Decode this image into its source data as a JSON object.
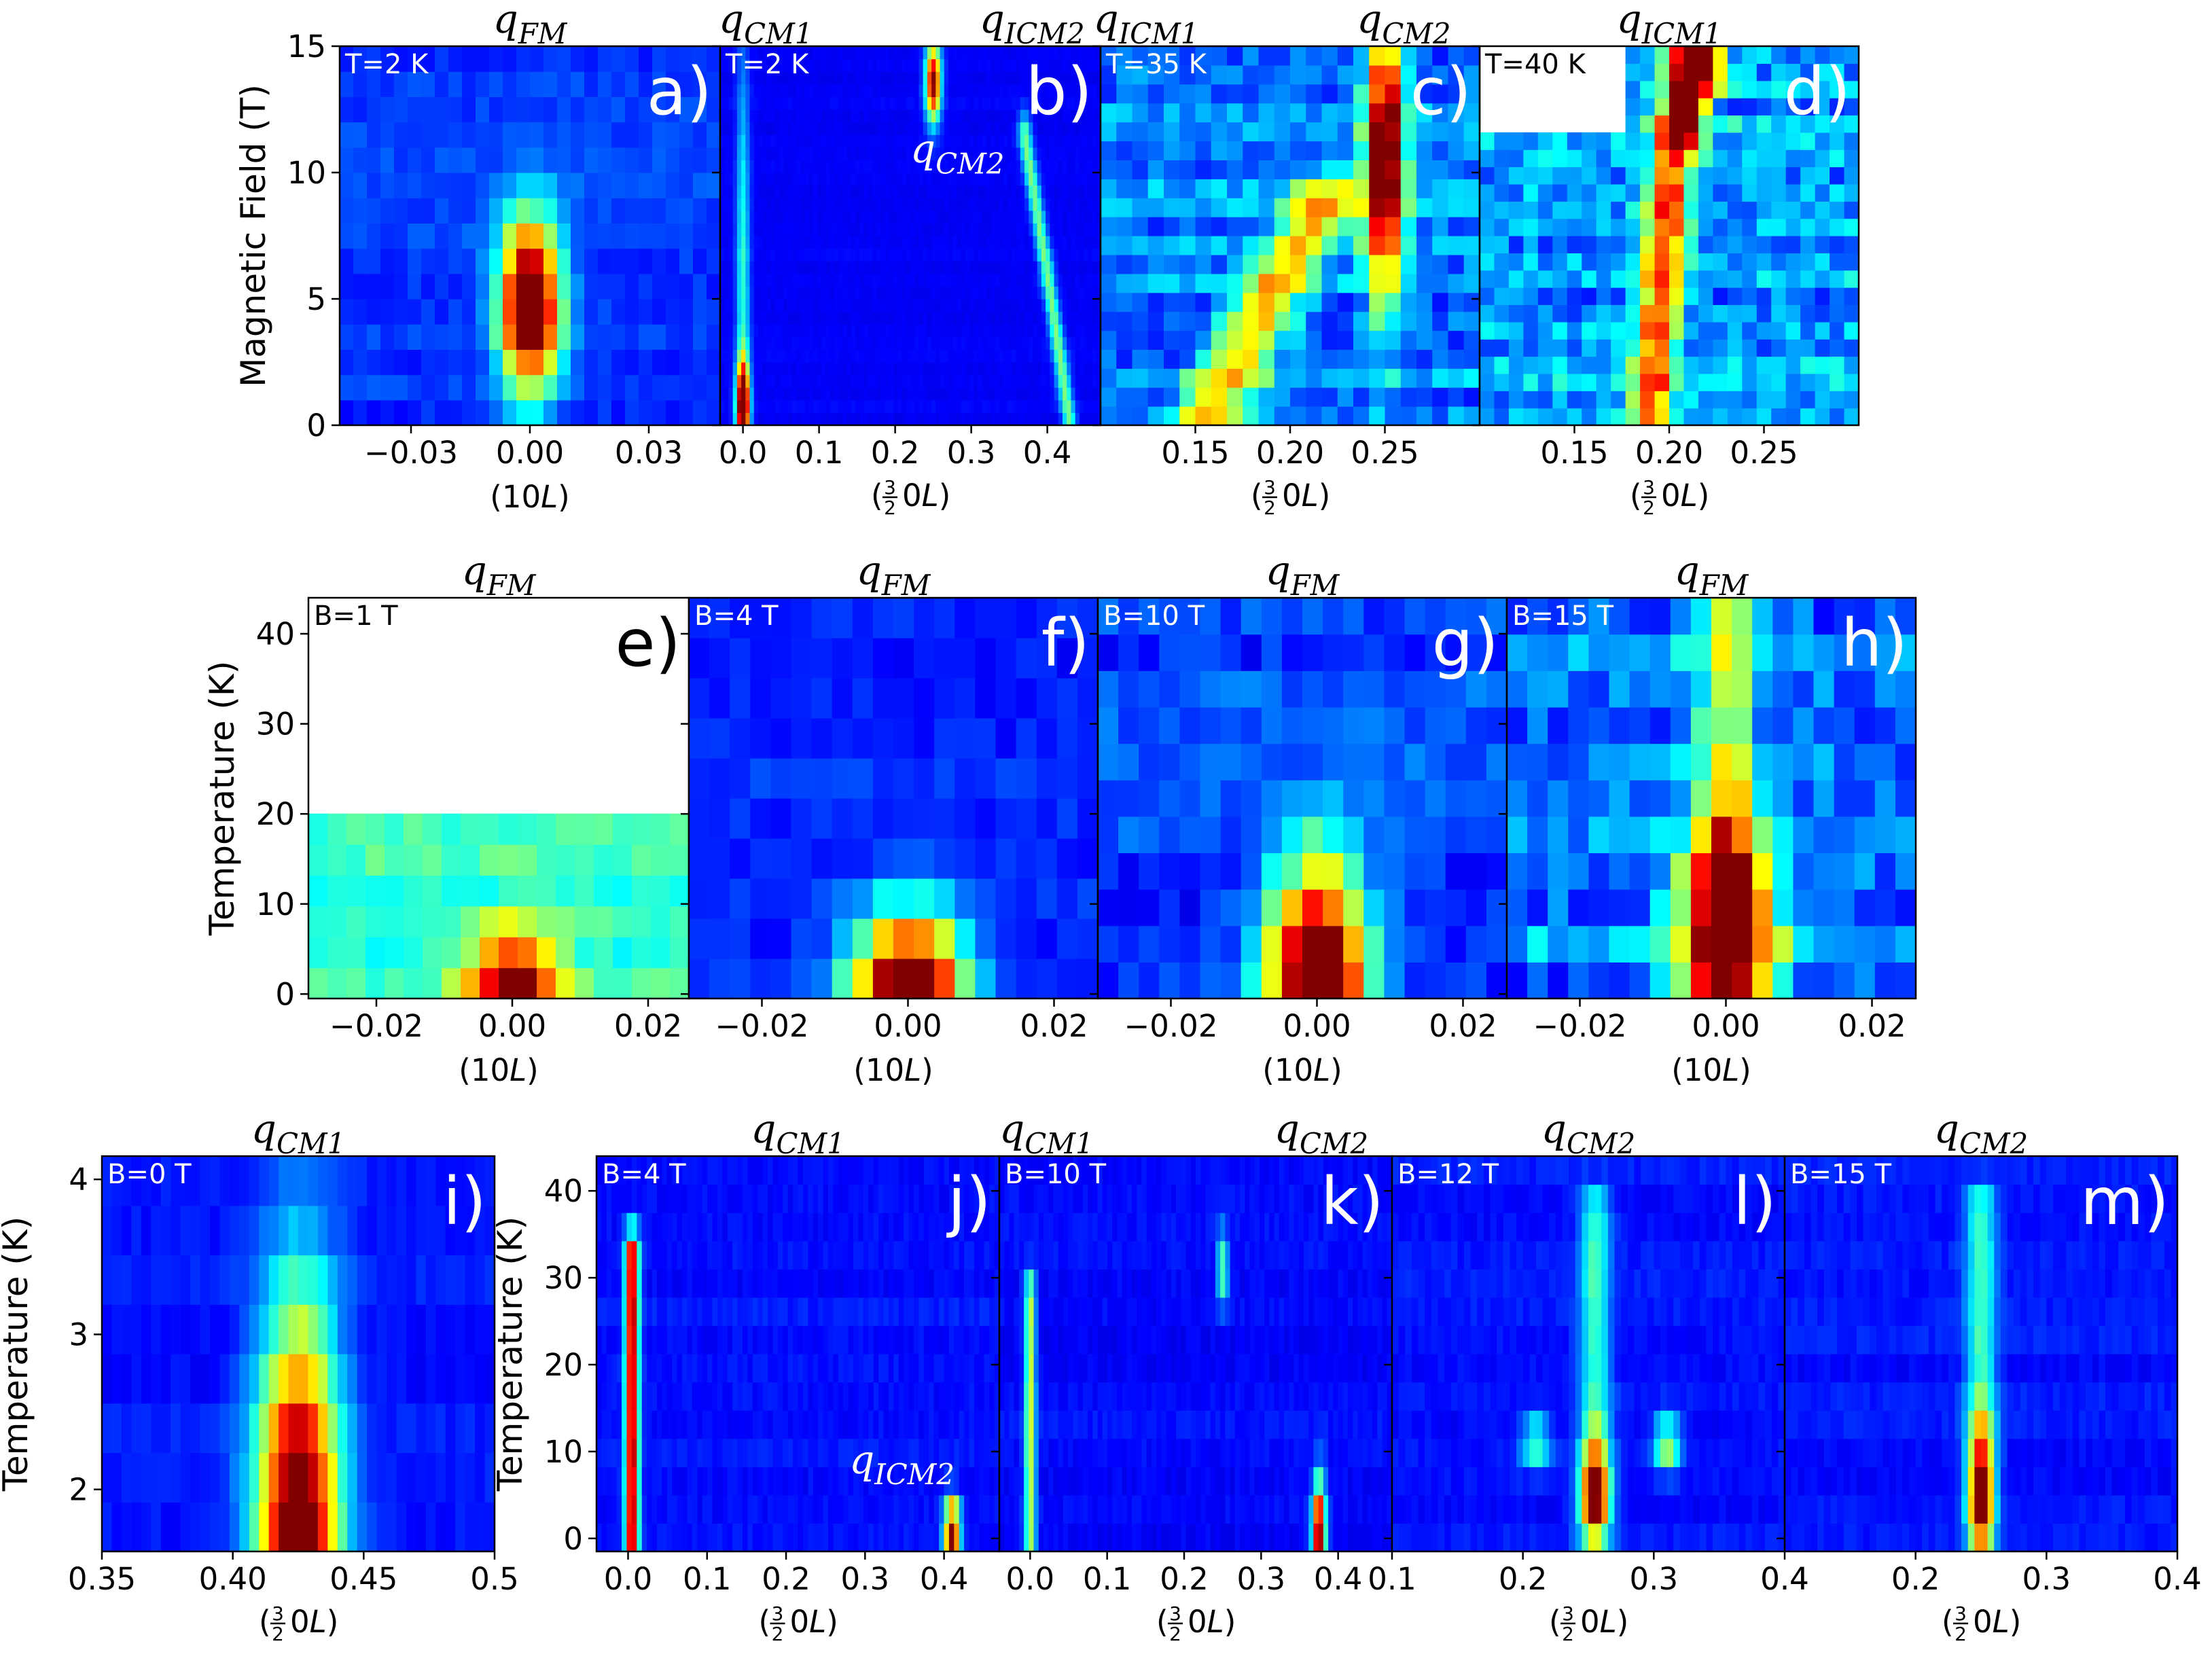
{
  "figure": {
    "description": ""
  },
  "chart_data": [
    {
      "id": "a",
      "type": "heatmap",
      "panel_label": "a)",
      "title": "q_FM",
      "title_parts": {
        "base": "q",
        "sub": "FM"
      },
      "corner_text": "T=2 K",
      "xlabel": "(10L)",
      "xlabel_kind": "10L",
      "ylabel": "Magnetic Field (T)",
      "xlim": [
        -0.048,
        0.048
      ],
      "ylim": [
        0,
        15
      ],
      "xticks": [
        -0.03,
        0.0,
        0.03
      ],
      "xtick_labels": [
        "−0.03",
        "0.00",
        "0.03"
      ],
      "yticks": [
        0,
        5,
        10,
        15
      ],
      "ytick_labels": [
        "0",
        "5",
        "10",
        "15"
      ],
      "nx": 28,
      "ny": 15,
      "blank": [],
      "features": [
        {
          "x": 0.0,
          "y": 4.8,
          "sx": 0.0055,
          "sy": 2.4,
          "amp": 1.0
        }
      ],
      "bg": 0.18,
      "noise": 0.03,
      "annotations": []
    },
    {
      "id": "b",
      "type": "heatmap",
      "panel_label": "b)",
      "title": "q_CM1   q_ICM2",
      "title_parts": {
        "base": "q",
        "sub": "CM1"
      },
      "title2_parts": {
        "base": "q",
        "sub": "ICM2"
      },
      "corner_text": "T=2 K",
      "xlabel": "(3/2 0L)",
      "xlabel_kind": "frac",
      "xlim": [
        -0.03,
        0.47
      ],
      "ylim": [
        0,
        15
      ],
      "xticks": [
        0.0,
        0.1,
        0.2,
        0.3,
        0.4
      ],
      "xtick_labels": [
        "0.0",
        "0.1",
        "0.2",
        "0.3",
        "0.4"
      ],
      "yticks": [
        0,
        5,
        10,
        15
      ],
      "ytick_labels": [],
      "nx": 90,
      "ny": 30,
      "blank": [],
      "features": [
        {
          "x": 0.0,
          "y": 0.8,
          "sx": 0.006,
          "sy": 1.2,
          "amp": 1.0
        },
        {
          "x": 0.0,
          "y": 6,
          "sx": 0.006,
          "sy": 6,
          "amp": 0.3
        },
        {
          "x": 0.25,
          "y": 13.6,
          "sx": 0.007,
          "sy": 1.1,
          "amp": 0.9
        }
      ],
      "lines": [
        {
          "pts": [
            [
              0.37,
              11.5
            ],
            [
              0.4,
              6
            ],
            [
              0.42,
              2
            ],
            [
              0.43,
              0
            ]
          ],
          "amp": 0.38,
          "w": 0.006
        }
      ],
      "bg": 0.12,
      "noise": 0.01,
      "annotations": [
        {
          "text_parts": {
            "base": "q",
            "sub": "CM2"
          },
          "x": 0.22,
          "y": 10.4
        }
      ]
    },
    {
      "id": "c",
      "type": "heatmap",
      "panel_label": "c)",
      "title": "q_ICM1  q_CM2",
      "title_parts": {
        "base": "q",
        "sub": "ICM1"
      },
      "title2_parts": {
        "base": "q",
        "sub": "CM2"
      },
      "corner_text": "T=35 K",
      "xlabel": "(3/2 0L)",
      "xlabel_kind": "frac",
      "xlim": [
        0.1,
        0.3
      ],
      "ylim": [
        0,
        15
      ],
      "xticks": [
        0.15,
        0.2,
        0.25
      ],
      "xtick_labels": [
        "0.15",
        "0.20",
        "0.25"
      ],
      "yticks": [
        0,
        5,
        10,
        15
      ],
      "ytick_labels": [],
      "nx": 24,
      "ny": 20,
      "blank": [],
      "features": [
        {
          "x": 0.25,
          "y": 10.5,
          "sx": 0.007,
          "sy": 3.8,
          "amp": 0.95
        }
      ],
      "lines": [
        {
          "pts": [
            [
              0.155,
              0
            ],
            [
              0.175,
              3
            ],
            [
              0.195,
              6
            ],
            [
              0.22,
              9
            ]
          ],
          "amp": 0.45,
          "w": 0.013
        }
      ],
      "bg": 0.25,
      "noise": 0.07,
      "annotations": []
    },
    {
      "id": "d",
      "type": "heatmap",
      "panel_label": "d)",
      "title": "q_ICM1",
      "title_parts": {
        "base": "q",
        "sub": "ICM1"
      },
      "corner_text": "T=40 K",
      "xlabel": "(3/2 0L)",
      "xlabel_kind": "frac",
      "xlim": [
        0.1,
        0.3
      ],
      "ylim": [
        0,
        15
      ],
      "xticks": [
        0.15,
        0.2,
        0.25
      ],
      "xtick_labels": [
        "0.15",
        "0.20",
        "0.25"
      ],
      "yticks": [
        0,
        5,
        10,
        15
      ],
      "ytick_labels": [],
      "nx": 26,
      "ny": 22,
      "blank": [
        [
          0.1,
          0.18,
          11.3,
          15
        ]
      ],
      "features": [
        {
          "x": 0.215,
          "y": 14.4,
          "sx": 0.008,
          "sy": 1.0,
          "amp": 0.8
        },
        {
          "x": 0.205,
          "y": 11.8,
          "sx": 0.006,
          "sy": 0.7,
          "amp": 0.6
        }
      ],
      "lines": [
        {
          "pts": [
            [
              0.19,
              0
            ],
            [
              0.195,
              5
            ],
            [
              0.2,
              10
            ],
            [
              0.21,
              14
            ]
          ],
          "amp": 0.55,
          "w": 0.008
        }
      ],
      "bg": 0.3,
      "noise": 0.09,
      "annotations": []
    },
    {
      "id": "e",
      "type": "heatmap",
      "panel_label": "e)",
      "title": "q_FM",
      "title_parts": {
        "base": "q",
        "sub": "FM"
      },
      "corner_text": "B=1 T",
      "xlabel": "(10L)",
      "xlabel_kind": "10L",
      "ylabel": "Temperature (K)",
      "xlim": [
        -0.03,
        0.026
      ],
      "ylim": [
        -0.5,
        44
      ],
      "xticks": [
        -0.02,
        0.0,
        0.02
      ],
      "xtick_labels": [
        "−0.02",
        "0.00",
        "0.02"
      ],
      "yticks": [
        0,
        10,
        20,
        30,
        40
      ],
      "ytick_labels": [
        "0",
        "10",
        "20",
        "30",
        "40"
      ],
      "nx": 20,
      "ny": 13,
      "blank": [
        [
          -0.03,
          0.026,
          21,
          44
        ]
      ],
      "features": [
        {
          "x": 0.0,
          "y": 0.3,
          "sx": 0.0045,
          "sy": 4.5,
          "amp": 0.65
        }
      ],
      "bg": 0.42,
      "noise": 0.04,
      "annotations": []
    },
    {
      "id": "f",
      "type": "heatmap",
      "panel_label": "f)",
      "title": "q_FM",
      "title_parts": {
        "base": "q",
        "sub": "FM"
      },
      "corner_text": "B=4 T",
      "xlabel": "(10L)",
      "xlabel_kind": "10L",
      "xlim": [
        -0.03,
        0.026
      ],
      "ylim": [
        -0.5,
        44
      ],
      "xticks": [
        -0.02,
        0.0,
        0.02
      ],
      "xtick_labels": [
        "−0.02",
        "0.00",
        "0.02"
      ],
      "yticks": [
        0,
        10,
        20,
        30,
        40
      ],
      "ytick_labels": [],
      "nx": 20,
      "ny": 10,
      "blank": [],
      "features": [
        {
          "x": 0.0,
          "y": 0.5,
          "sx": 0.0055,
          "sy": 6,
          "amp": 0.95
        }
      ],
      "bg": 0.16,
      "noise": 0.03,
      "annotations": []
    },
    {
      "id": "g",
      "type": "heatmap",
      "panel_label": "g)",
      "title": "q_FM",
      "title_parts": {
        "base": "q",
        "sub": "FM"
      },
      "corner_text": "B=10 T",
      "xlabel": "(10L)",
      "xlabel_kind": "10L",
      "xlim": [
        -0.03,
        0.026
      ],
      "ylim": [
        -0.5,
        44
      ],
      "xticks": [
        -0.02,
        0.0,
        0.02
      ],
      "xtick_labels": [
        "−0.02",
        "0.00",
        "0.02"
      ],
      "yticks": [
        0,
        10,
        20,
        30,
        40
      ],
      "ytick_labels": [],
      "nx": 20,
      "ny": 11,
      "blank": [],
      "features": [
        {
          "x": 0.0,
          "y": 2,
          "sx": 0.005,
          "sy": 9,
          "amp": 1.0
        }
      ],
      "bg": 0.18,
      "noise": 0.05,
      "annotations": []
    },
    {
      "id": "h",
      "type": "heatmap",
      "panel_label": "h)",
      "title": "q_FM",
      "title_parts": {
        "base": "q",
        "sub": "FM"
      },
      "corner_text": "B=15 T",
      "xlabel": "(10L)",
      "xlabel_kind": "10L",
      "xlim": [
        -0.03,
        0.026
      ],
      "ylim": [
        -0.5,
        44
      ],
      "xticks": [
        -0.02,
        0.0,
        0.02
      ],
      "xtick_labels": [
        "−0.02",
        "0.00",
        "0.02"
      ],
      "yticks": [
        0,
        10,
        20,
        30,
        40
      ],
      "ytick_labels": [],
      "nx": 20,
      "ny": 11,
      "blank": [],
      "features": [
        {
          "x": 0.0,
          "y": 6,
          "sx": 0.0045,
          "sy": 8,
          "amp": 0.95
        }
      ],
      "lines": [
        {
          "pts": [
            [
              0.0,
              14
            ],
            [
              0.0,
              44
            ]
          ],
          "amp": 0.35,
          "w": 0.003
        }
      ],
      "bg": 0.25,
      "noise": 0.08,
      "annotations": []
    },
    {
      "id": "i",
      "type": "heatmap",
      "panel_label": "i)",
      "title": "q_CM1",
      "title_parts": {
        "base": "q",
        "sub": "CM1"
      },
      "corner_text": "B=0 T",
      "xlabel": "(3/2 0L)",
      "xlabel_kind": "frac",
      "ylabel": "Temperature (K)",
      "xlim": [
        0.35,
        0.5
      ],
      "ylim": [
        1.6,
        4.15
      ],
      "xticks": [
        0.35,
        0.4,
        0.45,
        0.5
      ],
      "xtick_labels": [
        "0.35",
        "0.40",
        "0.45",
        "0.5"
      ],
      "yticks": [
        2,
        3,
        4
      ],
      "ytick_labels": [
        "2",
        "3",
        "4"
      ],
      "nx": 40,
      "ny": 8,
      "blank": [],
      "features": [
        {
          "x": 0.425,
          "y": 1.6,
          "sx": 0.011,
          "sy": 1.1,
          "amp": 1.0
        }
      ],
      "bg": 0.14,
      "noise": 0.02,
      "annotations": []
    },
    {
      "id": "j",
      "type": "heatmap",
      "panel_label": "j)",
      "title": "q_CM1",
      "title_parts": {
        "base": "q",
        "sub": "CM1"
      },
      "corner_text": "B=4 T",
      "xlabel": "(3/2 0L)",
      "xlabel_kind": "frac",
      "ylabel": "Temperature (K)",
      "xlim": [
        -0.04,
        0.47
      ],
      "ylim": [
        -1.5,
        44
      ],
      "xticks": [
        0.0,
        0.1,
        0.2,
        0.3,
        0.4
      ],
      "xtick_labels": [
        "0.0",
        "0.1",
        "0.2",
        "0.3",
        "0.4"
      ],
      "yticks": [
        0,
        10,
        20,
        30,
        40
      ],
      "ytick_labels": [
        "0",
        "10",
        "20",
        "30",
        "40"
      ],
      "nx": 80,
      "ny": 14,
      "blank": [],
      "features": [
        {
          "x": 0.41,
          "y": 1,
          "sx": 0.007,
          "sy": 2.5,
          "amp": 0.9
        }
      ],
      "lines": [
        {
          "pts": [
            [
              0.005,
              0
            ],
            [
              0.005,
              33
            ]
          ],
          "amp": 0.85,
          "w": 0.006
        }
      ],
      "bg": 0.14,
      "noise": 0.02,
      "annotations": [
        {
          "text_parts": {
            "base": "q",
            "sub": "ICM2"
          },
          "x": 0.28,
          "y": 7.5
        }
      ]
    },
    {
      "id": "k",
      "type": "heatmap",
      "panel_label": "k)",
      "title": "q_CM1   q_CM2",
      "title_parts": {
        "base": "q",
        "sub": "CM1"
      },
      "title2_parts": {
        "base": "q",
        "sub": "CM2"
      },
      "corner_text": "B=10 T",
      "xlabel": "(3/2 0L)",
      "xlabel_kind": "frac",
      "xlim": [
        -0.04,
        0.47
      ],
      "ylim": [
        -1.5,
        44
      ],
      "xticks": [
        0.0,
        0.1,
        0.2,
        0.3,
        0.4
      ],
      "xtick_labels": [
        "0.0",
        "0.1",
        "0.2",
        "0.3",
        "0.4"
      ],
      "yticks": [
        0,
        10,
        20,
        30,
        40
      ],
      "ytick_labels": [],
      "nx": 80,
      "ny": 14,
      "blank": [],
      "features": [
        {
          "x": 0.375,
          "y": 1,
          "sx": 0.006,
          "sy": 4,
          "amp": 0.95
        },
        {
          "x": 0.25,
          "y": 31,
          "sx": 0.005,
          "sy": 3,
          "amp": 0.35
        }
      ],
      "lines": [
        {
          "pts": [
            [
              0.0,
              0
            ],
            [
              0.0,
              28
            ]
          ],
          "amp": 0.45,
          "w": 0.005
        }
      ],
      "bg": 0.13,
      "noise": 0.02,
      "annotations": []
    },
    {
      "id": "l",
      "type": "heatmap",
      "panel_label": "l)",
      "title": "q_CM2",
      "title_parts": {
        "base": "q",
        "sub": "CM2"
      },
      "corner_text": "B=12 T",
      "xlabel": "(3/2 0L)",
      "xlabel_kind": "frac",
      "xlim": [
        0.1,
        0.4
      ],
      "ylim": [
        -1.5,
        44
      ],
      "xticks": [
        0.1,
        0.2,
        0.3,
        0.4
      ],
      "xtick_labels": [
        "0.1",
        "0.2",
        "0.3",
        "0.4"
      ],
      "yticks": [
        0,
        10,
        20,
        30,
        40
      ],
      "ytick_labels": [],
      "nx": 60,
      "ny": 14,
      "blank": [],
      "features": [
        {
          "x": 0.255,
          "y": 5,
          "sx": 0.008,
          "sy": 4,
          "amp": 1.0
        },
        {
          "x": 0.31,
          "y": 11,
          "sx": 0.007,
          "sy": 2,
          "amp": 0.45
        },
        {
          "x": 0.21,
          "y": 11,
          "sx": 0.008,
          "sy": 2,
          "amp": 0.35
        }
      ],
      "lines": [
        {
          "pts": [
            [
              0.255,
              12
            ],
            [
              0.255,
              38
            ]
          ],
          "amp": 0.3,
          "w": 0.008
        }
      ],
      "bg": 0.14,
      "noise": 0.02,
      "annotations": []
    },
    {
      "id": "m",
      "type": "heatmap",
      "panel_label": "m)",
      "title": "q_CM2",
      "title_parts": {
        "base": "q",
        "sub": "CM2"
      },
      "corner_text": "B=15 T",
      "xlabel": "(3/2 0L)",
      "xlabel_kind": "frac",
      "xlim": [
        0.1,
        0.4
      ],
      "ylim": [
        -1.5,
        44
      ],
      "xticks": [
        0.2,
        0.3,
        0.4
      ],
      "xtick_labels": [
        "0.2",
        "0.3",
        "0.4"
      ],
      "yticks": [
        0,
        10,
        20,
        30,
        40
      ],
      "ytick_labels": [],
      "nx": 60,
      "ny": 14,
      "blank": [],
      "features": [
        {
          "x": 0.25,
          "y": 5,
          "sx": 0.007,
          "sy": 5,
          "amp": 1.0
        }
      ],
      "lines": [
        {
          "pts": [
            [
              0.25,
              12
            ],
            [
              0.25,
              38
            ]
          ],
          "amp": 0.3,
          "w": 0.008
        }
      ],
      "bg": 0.14,
      "noise": 0.02,
      "annotations": []
    }
  ],
  "extra_ticks": [
    {
      "panel": "l",
      "text": "0.4",
      "x": 0.1
    }
  ]
}
